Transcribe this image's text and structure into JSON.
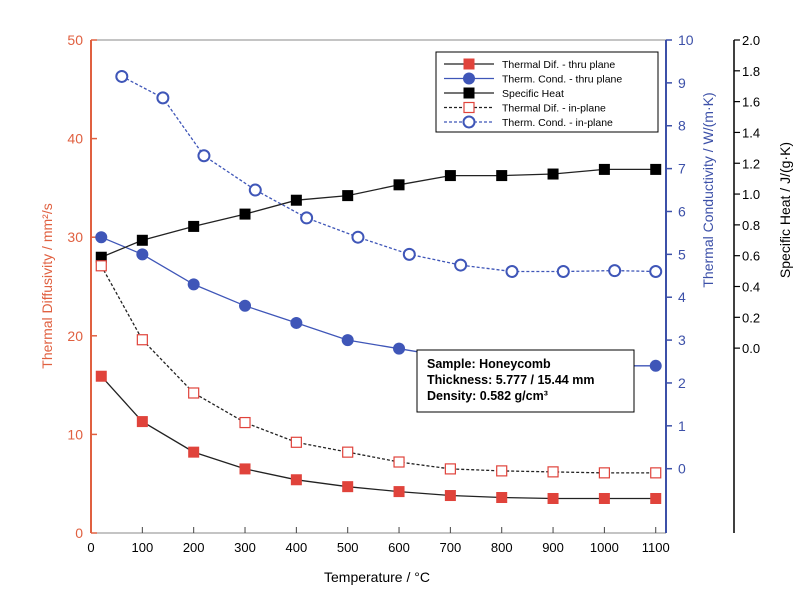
{
  "chart_data": {
    "type": "line",
    "title": "",
    "x": [
      20,
      100,
      200,
      300,
      400,
      500,
      600,
      700,
      800,
      900,
      1000,
      1100
    ],
    "xlabel": "Temperature / °C",
    "xlim": [
      0,
      1120
    ],
    "xticks": [
      0,
      100,
      200,
      300,
      400,
      500,
      600,
      700,
      800,
      900,
      1000,
      1100
    ],
    "axes": {
      "left": {
        "label": "Thermal Diffusivity / mm²/s",
        "min": 0,
        "max": 50,
        "ticks": [
          0,
          10,
          20,
          30,
          40,
          50
        ],
        "color": "#e06040"
      },
      "right1": {
        "label": "Thermal Conductivity / W/(m·K)",
        "min": -1.5,
        "max": 10,
        "ticks": [
          0,
          1,
          2,
          3,
          4,
          5,
          6,
          7,
          8,
          9,
          10
        ],
        "color": "#3c50a8"
      },
      "right2": {
        "label": "Specific Heat / J/(g·K)",
        "min": -1.2,
        "max": 2.0,
        "ticks": [
          0.0,
          0.2,
          0.4,
          0.6,
          0.8,
          1.0,
          1.2,
          1.4,
          1.6,
          1.8,
          2.0
        ],
        "color": "#000000"
      }
    },
    "series": [
      {
        "name": "Thermal Dif. - thru plane",
        "axis": "left",
        "marker": "square-filled",
        "line": "solid",
        "color": "#e0433b",
        "lineColor": "#222222",
        "x": [
          20,
          100,
          200,
          300,
          400,
          500,
          600,
          700,
          800,
          900,
          1000,
          1100
        ],
        "values": [
          15.9,
          11.3,
          8.2,
          6.5,
          5.4,
          4.7,
          4.2,
          3.8,
          3.6,
          3.5,
          3.5,
          3.5
        ]
      },
      {
        "name": "Therm. Cond. - thru plane",
        "axis": "right1",
        "marker": "circle-filled",
        "line": "solid",
        "color": "#3f56b8",
        "lineColor": "#3f56b8",
        "x": [
          20,
          100,
          200,
          300,
          400,
          500,
          600,
          700,
          800,
          900,
          1000,
          1100
        ],
        "values": [
          5.4,
          5.0,
          4.3,
          3.8,
          3.4,
          3.0,
          2.8,
          2.6,
          2.4,
          2.35,
          2.4,
          2.4
        ]
      },
      {
        "name": "Specific Heat",
        "axis": "right2",
        "marker": "square-filled",
        "line": "solid",
        "color": "#000000",
        "lineColor": "#222222",
        "x": [
          20,
          100,
          200,
          300,
          400,
          500,
          600,
          700,
          800,
          900,
          1000,
          1100
        ],
        "values": [
          0.59,
          0.7,
          0.79,
          0.87,
          0.96,
          0.99,
          1.06,
          1.12,
          1.12,
          1.13,
          1.16,
          1.16
        ]
      },
      {
        "name": "Thermal Dif. - in-plane",
        "axis": "left",
        "marker": "square-open",
        "line": "dotted",
        "color": "#e0433b",
        "lineColor": "#222222",
        "x": [
          20,
          100,
          200,
          300,
          400,
          500,
          600,
          700,
          800,
          900,
          1000,
          1100
        ],
        "values": [
          27.1,
          19.6,
          14.2,
          11.2,
          9.2,
          8.2,
          7.2,
          6.5,
          6.3,
          6.2,
          6.1,
          6.1
        ]
      },
      {
        "name": "Therm. Cond. - in-plane",
        "axis": "right1",
        "marker": "circle-open",
        "line": "dotted",
        "color": "#3f56b8",
        "lineColor": "#3f56b8",
        "x": [
          60,
          140,
          220,
          320,
          420,
          520,
          620,
          720,
          820,
          920,
          1020,
          1100
        ],
        "values": [
          9.15,
          8.65,
          7.3,
          6.5,
          5.85,
          5.4,
          5.0,
          4.75,
          4.6,
          4.6,
          4.62,
          4.6
        ]
      }
    ],
    "legend": {
      "placement": "top-right"
    },
    "annotation": {
      "lines": [
        "Sample: Honeycomb",
        "Thickness: 5.777 / 15.44 mm",
        "Density: 0.582 g/cm³"
      ]
    },
    "grid": false
  }
}
